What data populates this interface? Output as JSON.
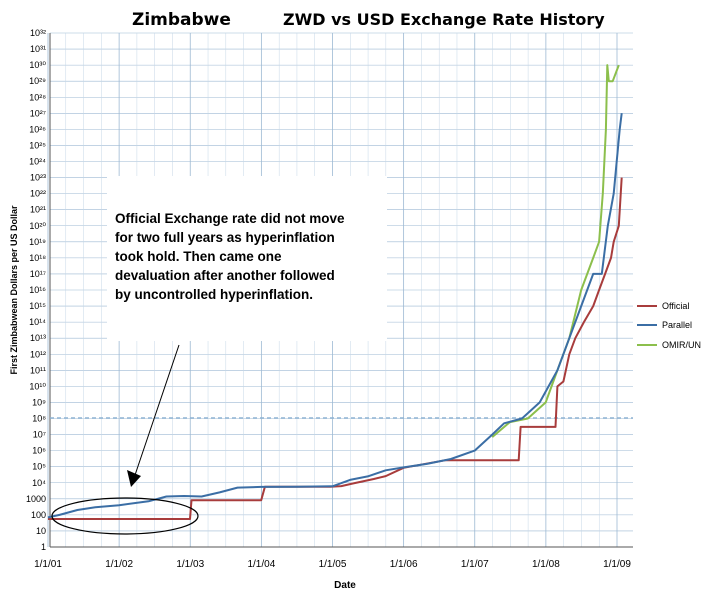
{
  "chart_data": {
    "type": "line",
    "title_left": "Zimbabwe",
    "title_right": "ZWD vs USD Exchange Rate History",
    "xlabel": "Date",
    "ylabel": "First Zimbabwean Dollars per US Dollar",
    "y_scale": "log",
    "y_ticks": [
      "1",
      "10",
      "100",
      "1000",
      "10⁴",
      "10⁵",
      "10⁶",
      "10⁷",
      "10⁸",
      "10⁹",
      "10¹⁰",
      "10¹¹",
      "10¹²",
      "10¹³",
      "10¹⁴",
      "10¹⁵",
      "10¹⁶",
      "10¹⁷",
      "10¹⁸",
      "10¹⁹",
      "10²⁰",
      "10²¹",
      "10²²",
      "10²³",
      "10²⁴",
      "10²⁵",
      "10²⁶",
      "10²⁷",
      "10²⁸",
      "10²⁹",
      "10³⁰",
      "10³¹",
      "10³²"
    ],
    "x_ticks": [
      "1/1/01",
      "1/1/02",
      "1/1/03",
      "1/1/04",
      "1/1/05",
      "1/1/06",
      "1/1/07",
      "1/1/08",
      "1/1/09"
    ],
    "x_range": [
      "2001-01-01",
      "2009-01-01"
    ],
    "ylim": [
      1,
      1e+32
    ],
    "grid": true,
    "legend_position": "right",
    "series": [
      {
        "name": "Official",
        "color": "#a83c3c",
        "points": [
          [
            "2001-01-01",
            55
          ],
          [
            "2002-12-31",
            55
          ],
          [
            "2003-01-08",
            824
          ],
          [
            "2004-01-01",
            824
          ],
          [
            "2004-01-20",
            5600
          ],
          [
            "2004-12-20",
            5700
          ],
          [
            "2005-02-15",
            6200
          ],
          [
            "2005-04-15",
            9000
          ],
          [
            "2005-08-01",
            17000
          ],
          [
            "2005-10-01",
            26000
          ],
          [
            "2006-01-01",
            85000
          ],
          [
            "2006-08-01",
            250000
          ],
          [
            "2007-08-15",
            250000
          ],
          [
            "2007-08-25",
            30000000
          ],
          [
            "2008-02-20",
            30000000
          ],
          [
            "2008-03-01",
            10000000000.0
          ],
          [
            "2008-04-01",
            20000000000.0
          ],
          [
            "2008-05-01",
            1000000000000.0
          ],
          [
            "2008-06-01",
            10000000000000.0
          ],
          [
            "2008-07-15",
            100000000000000.0
          ],
          [
            "2008-09-01",
            1000000000000000.0
          ],
          [
            "2008-10-01",
            1e+16
          ],
          [
            "2008-11-01",
            1e+17
          ],
          [
            "2008-12-01",
            1e+18
          ],
          [
            "2008-12-15",
            1e+19
          ],
          [
            "2009-01-10",
            1e+20
          ],
          [
            "2009-01-25",
            1e+23
          ]
        ]
      },
      {
        "name": "Parallel",
        "color": "#3b6ea5",
        "points": [
          [
            "2001-01-01",
            70
          ],
          [
            "2001-03-01",
            100
          ],
          [
            "2001-06-01",
            200
          ],
          [
            "2001-09-01",
            300
          ],
          [
            "2002-01-01",
            400
          ],
          [
            "2002-06-01",
            700
          ],
          [
            "2002-09-01",
            1400
          ],
          [
            "2002-12-01",
            1500
          ],
          [
            "2003-03-01",
            1400
          ],
          [
            "2003-06-01",
            2500
          ],
          [
            "2003-09-01",
            5000
          ],
          [
            "2004-01-01",
            5500
          ],
          [
            "2004-07-01",
            5600
          ],
          [
            "2005-01-01",
            6000
          ],
          [
            "2005-04-01",
            15000
          ],
          [
            "2005-07-01",
            25000
          ],
          [
            "2005-10-01",
            60000
          ],
          [
            "2006-01-01",
            90000
          ],
          [
            "2006-05-01",
            150000
          ],
          [
            "2006-09-01",
            300000
          ],
          [
            "2007-01-01",
            1000000
          ],
          [
            "2007-04-01",
            10000000
          ],
          [
            "2007-06-01",
            50000000
          ],
          [
            "2007-09-01",
            100000000
          ],
          [
            "2007-12-01",
            1000000000.0
          ],
          [
            "2008-03-01",
            100000000000.0
          ],
          [
            "2008-05-01",
            10000000000000.0
          ],
          [
            "2008-07-01",
            1000000000000000.0
          ],
          [
            "2008-09-01",
            1e+17
          ],
          [
            "2008-10-15",
            1e+17
          ],
          [
            "2008-11-15",
            1e+20
          ],
          [
            "2008-12-15",
            1e+22
          ],
          [
            "2009-01-15",
            1e+26
          ],
          [
            "2009-01-25",
            1e+27
          ]
        ]
      },
      {
        "name": "OMIR/UN",
        "color": "#8cbf4c",
        "points": [
          [
            "2007-04-01",
            7000000
          ],
          [
            "2007-07-01",
            60000000
          ],
          [
            "2007-10-01",
            100000000
          ],
          [
            "2008-01-01",
            1000000000.0
          ],
          [
            "2008-03-01",
            100000000000.0
          ],
          [
            "2008-05-01",
            10000000000000.0
          ],
          [
            "2008-07-01",
            1e+16
          ],
          [
            "2008-09-01",
            1e+18
          ],
          [
            "2008-10-01",
            1e+19
          ],
          [
            "2008-10-20",
            1e+22
          ],
          [
            "2008-11-05",
            1e+26
          ],
          [
            "2008-11-12",
            1e+30
          ],
          [
            "2008-11-20",
            1e+29
          ],
          [
            "2008-12-10",
            1e+29
          ],
          [
            "2009-01-10",
            1e+30
          ]
        ]
      }
    ],
    "annotation": "Official Exchange rate did not move for two full years as hyperinflation took hold.  Then came one devaluation after another followed by uncontrolled hyperinflation.",
    "annotation_lines": [
      "Official Exchange rate did not move",
      "for two full years as hyperinflation",
      "took hold.  Then came one",
      "devaluation after another followed",
      "by uncontrolled hyperinflation."
    ]
  }
}
